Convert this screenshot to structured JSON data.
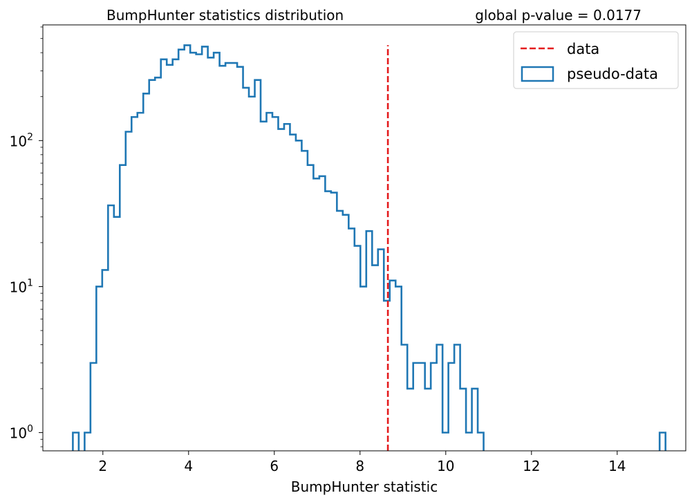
{
  "chart_data": {
    "type": "histogram",
    "title": "BumpHunter statistics distribution",
    "title_right": "global p-value = 0.0177",
    "xlabel": "BumpHunter statistic",
    "ylabel": "",
    "yscale": "log",
    "xlim": [
      0.6,
      15.6
    ],
    "ylim": [
      0.75,
      620
    ],
    "grid": false,
    "legend_position": "upper right",
    "x_ticks": [
      {
        "value": 2,
        "label": "2"
      },
      {
        "value": 4,
        "label": "4"
      },
      {
        "value": 6,
        "label": "6"
      },
      {
        "value": 8,
        "label": "8"
      },
      {
        "value": 10,
        "label": "10"
      },
      {
        "value": 12,
        "label": "12"
      },
      {
        "value": 14,
        "label": "14"
      }
    ],
    "y_ticks": [
      {
        "value": 1,
        "base": "10",
        "exp": "0"
      },
      {
        "value": 10,
        "base": "10",
        "exp": "1"
      },
      {
        "value": 100,
        "base": "10",
        "exp": "2"
      }
    ],
    "bins": {
      "start": 1.3,
      "width": 0.1369
    },
    "series": [
      {
        "name": "pseudo-data",
        "style": "step",
        "color": "#1f77b4",
        "values": [
          1,
          0,
          1,
          3,
          10,
          13,
          36,
          30,
          68,
          115,
          145,
          155,
          210,
          260,
          270,
          360,
          330,
          360,
          420,
          450,
          400,
          390,
          440,
          370,
          400,
          325,
          340,
          340,
          320,
          230,
          200,
          260,
          135,
          155,
          145,
          120,
          130,
          110,
          100,
          85,
          68,
          55,
          57,
          45,
          44,
          33,
          31,
          25,
          19,
          10,
          24,
          14,
          18,
          8,
          11,
          10,
          4,
          2,
          3,
          3,
          2,
          3,
          4,
          1,
          3,
          4,
          2,
          1,
          2,
          1,
          0,
          0,
          0,
          0,
          0,
          0,
          0,
          0,
          0,
          0,
          0,
          0,
          0,
          0,
          0,
          0,
          0,
          0,
          0,
          0,
          0,
          0,
          0,
          0,
          0,
          0,
          0,
          0,
          0,
          0,
          1
        ]
      },
      {
        "name": "data",
        "style": "dashed-vline",
        "color": "#e41a1c",
        "x": 8.65,
        "y_top": 450
      }
    ]
  }
}
